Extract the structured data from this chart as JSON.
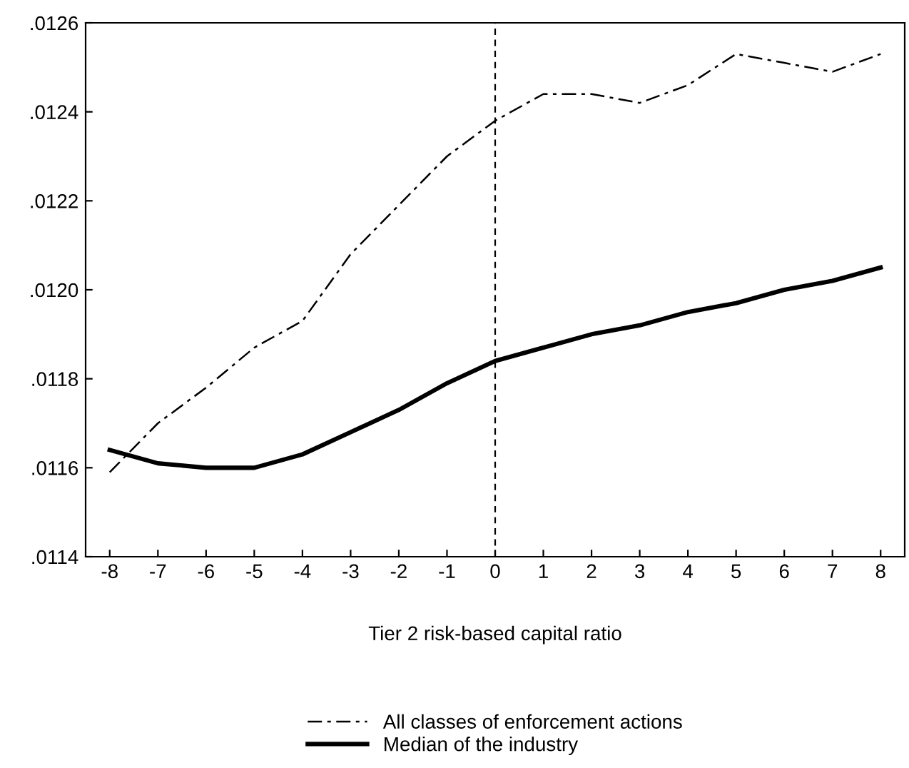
{
  "chart_data": {
    "type": "line",
    "xlabel": "Tier 2 risk-based capital ratio",
    "x": [
      -8,
      -7,
      -6,
      -5,
      -4,
      -3,
      -2,
      -1,
      0,
      1,
      2,
      3,
      4,
      5,
      6,
      7,
      8
    ],
    "series": [
      {
        "name": "All classes of enforcement actions",
        "color": "#000000",
        "line_style": "dashed",
        "values": [
          0.01159,
          0.0117,
          0.01178,
          0.01187,
          0.01193,
          0.01208,
          0.01219,
          0.0123,
          0.01238,
          0.01244,
          0.01244,
          0.01242,
          0.01246,
          0.01253,
          0.01251,
          0.01249,
          0.01253
        ]
      },
      {
        "name": "Median of the industry",
        "color": "#000000",
        "line_style": "solid",
        "values": [
          0.01164,
          0.01161,
          0.0116,
          0.0116,
          0.01163,
          0.01168,
          0.01173,
          0.01179,
          0.01184,
          0.01187,
          0.0119,
          0.01192,
          0.01195,
          0.01197,
          0.012,
          0.01202,
          0.01205
        ]
      }
    ],
    "xlim": [
      -8.5,
      8.5
    ],
    "xticks": [
      -8,
      -7,
      -6,
      -5,
      -4,
      -3,
      -2,
      -1,
      0,
      1,
      2,
      3,
      4,
      5,
      6,
      7,
      8
    ],
    "ylim": [
      0.0114,
      0.0126
    ],
    "yticks": [
      {
        "value": 0.0114,
        "label": ".0114"
      },
      {
        "value": 0.0116,
        "label": ".0116"
      },
      {
        "value": 0.0118,
        "label": ".0118"
      },
      {
        "value": 0.012,
        "label": ".0120"
      },
      {
        "value": 0.0122,
        "label": ".0122"
      },
      {
        "value": 0.0124,
        "label": ".0124"
      },
      {
        "value": 0.0126,
        "label": ".0126"
      }
    ],
    "ref_lines": [
      {
        "axis": "x",
        "value": 0,
        "label": null,
        "color": "#000000",
        "line_style": "dashed"
      }
    ],
    "legend": "bottom",
    "grid": false,
    "marker": "none"
  }
}
